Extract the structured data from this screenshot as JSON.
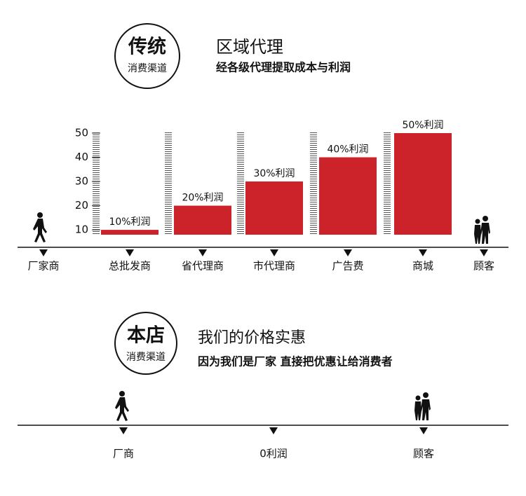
{
  "header": {
    "badge": "传统",
    "badge_sub": "消费渠道",
    "title": "区域代理",
    "subtitle": "经各级代理提取成本与利润"
  },
  "chart_data": {
    "type": "bar",
    "start": "厂家商",
    "end": "顾客",
    "categories": [
      "总批发商",
      "省代理商",
      "市代理商",
      "广告费",
      "商城"
    ],
    "values": [
      10,
      20,
      30,
      40,
      50
    ],
    "value_labels": [
      "10%利润",
      "20%利润",
      "30%利润",
      "40%利润",
      "50%利润"
    ],
    "color": "#cc2229",
    "ylim": [
      8,
      50
    ],
    "yticks": [
      10,
      20,
      30,
      40,
      50
    ]
  },
  "store": {
    "badge": "本店",
    "badge_sub": "消费渠道",
    "title": "我们的价格实惠",
    "subtitle": "因为我们是厂家  直接把优惠让给消费者",
    "stops": [
      "厂商",
      "0利润",
      "顾客"
    ]
  }
}
